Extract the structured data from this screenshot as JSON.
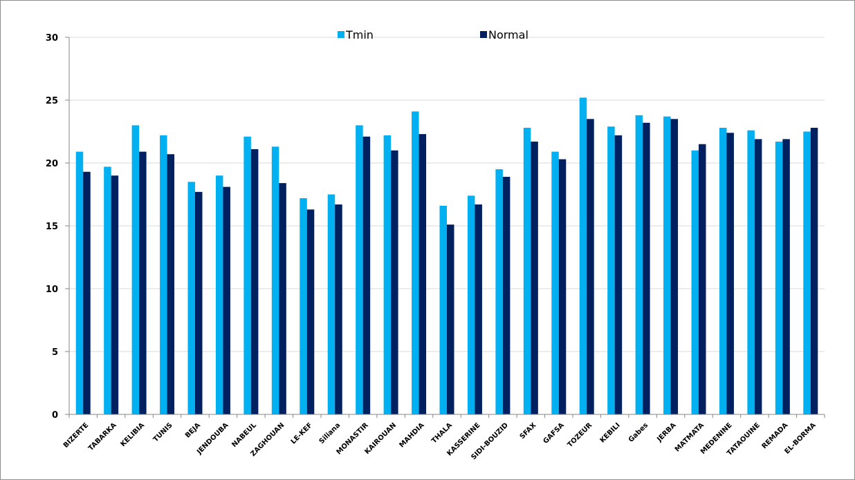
{
  "chart_data": {
    "type": "bar",
    "title": "",
    "xlabel": "",
    "ylabel": "",
    "ylim": [
      0,
      30
    ],
    "yticks": [
      0,
      5,
      10,
      15,
      20,
      25,
      30
    ],
    "grid": true,
    "legend_position": "top-center",
    "categories": [
      "BIZERTE",
      "TABARKA",
      "KELIBIA",
      "TUNIS",
      "BEJA",
      "JENDOUBA",
      "NABEUL",
      "ZAGHOUAN",
      "LE-KEF",
      "Siliana",
      "MONASTIR",
      "KAIROUAN",
      "MAHDIA",
      "THALA",
      "KASSERINE",
      "SIDI-BOUZID",
      "SFAX",
      "GAFSA",
      "TOZEUR",
      "KEBILI",
      "Gabes",
      "JERBA",
      "MATMATA",
      "MEDENINE",
      "TATAOUINE",
      "REMADA",
      "EL-BORMA"
    ],
    "series": [
      {
        "name": "Tmin",
        "color": "#00b0f0",
        "values": [
          20.9,
          19.7,
          23.0,
          22.2,
          18.5,
          19.0,
          22.1,
          21.3,
          17.2,
          17.5,
          23.0,
          22.2,
          24.1,
          16.6,
          17.4,
          19.5,
          22.8,
          20.9,
          25.2,
          22.9,
          23.8,
          23.7,
          21.0,
          22.8,
          22.6,
          21.7,
          22.5
        ]
      },
      {
        "name": "Normal",
        "color": "#002060",
        "values": [
          19.3,
          19.0,
          20.9,
          20.7,
          17.7,
          18.1,
          21.1,
          18.4,
          16.3,
          16.7,
          22.1,
          21.0,
          22.3,
          15.1,
          16.7,
          18.9,
          21.7,
          20.3,
          23.5,
          22.2,
          23.2,
          23.5,
          21.5,
          22.4,
          21.9,
          21.9,
          22.8
        ]
      }
    ]
  }
}
